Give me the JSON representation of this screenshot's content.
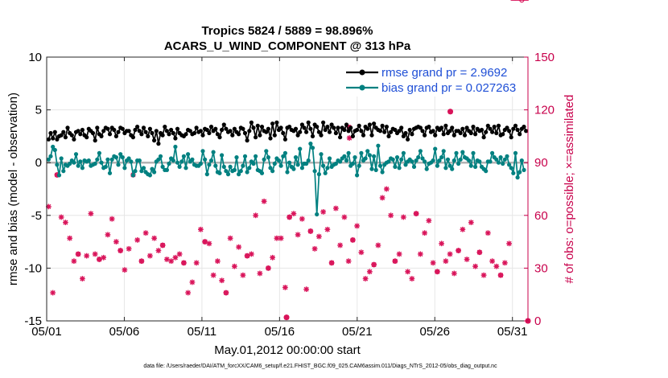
{
  "chart_data": {
    "type": "line",
    "title_line1": "Tropics 5824 / 5889 = 98.896%",
    "title_line2": "ACARS_U_WIND_COMPONENT @ 313 hPa",
    "xlabel": "May.01,2012 00:00:00 start",
    "ylabel_left": "rmse and bias (model - observation)",
    "ylabel_right": "# of obs: o=possible; ×=assimilated",
    "ylim_left": [
      -15,
      10
    ],
    "ylim_right": [
      0,
      150
    ],
    "xlim": [
      1,
      32
    ],
    "x_tick_values": [
      1,
      6,
      11,
      16,
      21,
      26,
      31
    ],
    "x_tick_labels": [
      "05/01",
      "05/06",
      "05/11",
      "05/16",
      "05/21",
      "05/26",
      "05/31"
    ],
    "y_left_ticks": [
      10,
      5,
      0,
      -5,
      -10,
      -15
    ],
    "y_right_ticks": [
      150,
      120,
      90,
      60,
      30,
      0
    ],
    "grid": true,
    "legend_position": "top-right",
    "colors": {
      "rmse": "#000000",
      "bias": "#008080",
      "obs": "#d9145a",
      "zero_line": "#b3b3b3",
      "legend_text": "#1f4fd6",
      "right_axis": "#c8004b"
    },
    "series": [
      {
        "name": "rmse grand pr = 2.9692",
        "key": "rmse",
        "values": [
          2.2,
          2.8,
          2.3,
          2.9,
          2.2,
          2.5,
          2.6,
          2.9,
          2.4,
          3.3,
          2.8,
          2.6,
          2.2,
          2.9,
          3.0,
          2.7,
          3.1,
          2.6,
          2.4,
          3.2,
          3.0,
          2.8,
          2.1,
          3.3,
          2.7,
          2.5,
          3.0,
          3.3,
          3.2,
          2.7,
          3.3,
          3.1,
          2.5,
          2.9,
          3.3,
          3.2,
          2.8,
          3.0,
          3.0,
          2.6,
          2.4,
          3.1,
          3.4,
          3.0,
          2.7,
          3.3,
          2.9,
          2.5,
          3.2,
          2.8,
          2.1,
          3.0,
          1.8,
          2.8,
          2.6,
          3.4,
          3.0,
          2.7,
          3.1,
          2.8,
          2.3,
          3.2,
          2.8,
          2.6,
          2.5,
          2.7,
          3.1,
          3.0,
          2.7,
          2.8,
          3.3,
          2.9,
          3.0,
          2.6,
          3.2,
          3.1,
          2.8,
          3.4,
          3.0,
          3.2,
          2.7,
          2.4,
          3.1,
          3.6,
          3.2,
          2.9,
          3.0,
          2.6,
          3.2,
          2.9,
          2.7,
          3.3,
          3.2,
          2.8,
          2.1,
          3.0,
          3.8,
          3.3,
          2.4,
          3.5,
          2.6,
          3.4,
          3.0,
          2.9,
          3.2,
          2.3,
          3.7,
          2.6,
          3.8,
          3.1,
          3.3,
          2.8,
          2.2,
          3.3,
          3.4,
          3.1,
          3.0,
          3.2,
          2.6,
          2.9,
          3.6,
          3.3,
          2.9,
          3.8,
          3.2,
          2.5,
          3.6,
          3.4,
          2.9,
          2.6,
          3.8,
          3.1,
          3.4,
          2.9,
          3.6,
          3.3,
          2.8,
          3.3,
          2.4,
          3.3,
          3.1,
          3.6,
          3.0,
          3.3,
          2.5,
          3.0,
          3.1,
          3.5,
          3.0,
          2.6,
          3.4,
          3.2,
          3.6,
          2.6,
          3.7,
          3.3,
          3.1,
          3.0,
          3.5,
          2.9,
          3.4,
          2.5,
          2.9,
          3.2,
          3.1,
          2.8,
          3.0,
          3.3,
          2.5,
          2.8,
          2.2,
          3.1,
          2.7,
          3.2,
          3.3,
          3.4,
          3.3,
          3.0,
          2.6,
          3.3,
          3.4,
          2.9,
          3.0,
          2.6,
          3.3,
          3.1,
          3.3,
          2.7,
          3.5,
          2.8,
          3.0,
          3.3,
          2.6,
          3.0,
          3.0,
          2.8,
          3.2,
          2.6,
          3.3,
          3.0,
          2.8,
          3.4,
          2.7,
          3.2,
          3.0,
          3.1,
          2.4,
          2.9,
          3.5,
          3.2,
          2.9,
          3.4,
          2.8,
          3.5,
          2.6,
          2.7,
          3.1,
          3.3,
          3.0,
          2.4,
          3.2,
          3.5,
          3.1,
          2.7,
          3.2,
          3.4,
          3.0
        ]
      },
      {
        "name": "bias grand pr = 0.027263",
        "key": "bias",
        "values": [
          0.3,
          0.6,
          1.5,
          1.2,
          -0.2,
          -1.2,
          0.4,
          -0.8,
          -0.2,
          -0.3,
          -0.1,
          0.2,
          0.0,
          0.8,
          -0.3,
          0.1,
          -0.5,
          0.2,
          0.1,
          0.2,
          -0.3,
          -0.2,
          -0.1,
          0.3,
          0.9,
          0.0,
          -0.5,
          -0.4,
          0.3,
          -1.0,
          0.3,
          0.6,
          0.5,
          -0.2,
          0.8,
          0.5,
          -0.5,
          0.2,
          0.4,
          0.1,
          -1.2,
          -0.8,
          0.2,
          0.2,
          -0.8,
          -0.5,
          -0.9,
          -1.1,
          -1.2,
          -0.6,
          -0.9,
          0.1,
          0.3,
          0.6,
          -0.4,
          -0.7,
          -0.7,
          -0.1,
          0.4,
          0.2,
          1.5,
          0.0,
          -0.4,
          0.1,
          0.6,
          -0.5,
          0.8,
          0.1,
          0.3,
          -0.2,
          -0.3,
          -0.3,
          -0.1,
          1.1,
          0.3,
          -1.1,
          -0.2,
          0.2,
          1.0,
          -0.3,
          -0.9,
          -1.0,
          0.7,
          -0.4,
          -0.8,
          -1.1,
          -0.4,
          -0.8,
          -0.7,
          0.5,
          -1.1,
          -0.8,
          -0.3,
          0.6,
          -0.9,
          -0.5,
          0.1,
          -0.1,
          0.6,
          -0.7,
          -0.8,
          -1.0,
          0.3,
          1.1,
          0.5,
          -0.5,
          -0.8,
          -0.1,
          0.4,
          0.2,
          -0.3,
          0.6,
          0.9,
          -0.9,
          0.0,
          -0.4,
          -0.6,
          0.5,
          -0.2,
          1.3,
          -0.5,
          -0.1,
          -0.1,
          0.2,
          1.8,
          1.4,
          -0.8,
          -4.9,
          -1.1,
          0.8,
          -0.3,
          -1.0,
          -0.5,
          0.4,
          -0.4,
          -0.2,
          -0.1,
          0.2,
          0.1,
          0.4,
          0.6,
          0.2,
          0.9,
          -0.3,
          -0.1,
          0.5,
          -1.2,
          -0.3,
          0.9,
          0.2,
          0.4,
          1.1,
          0.7,
          -0.6,
          0.6,
          -0.7,
          1.6,
          -0.3,
          -0.9,
          -0.2,
          0.0,
          0.1,
          0.4,
          0.3,
          -0.4,
          0.5,
          -0.5,
          0.3,
          0.9,
          -0.2,
          0.1,
          0.3,
          0.1,
          -0.4,
          0.2,
          0.5,
          1.1,
          0.4,
          0.1,
          -0.6,
          -0.1,
          0.0,
          0.2,
          1.3,
          -0.3,
          0.2,
          0.5,
          1.1,
          -0.5,
          0.3,
          -0.3,
          -0.6,
          0.2,
          0.9,
          -0.1,
          0.3,
          1.0,
          0.5,
          0.4,
          0.2,
          -0.3,
          0.9,
          -0.4,
          0.2,
          0.1,
          -0.4,
          -0.6,
          -0.8,
          0.1,
          0.1,
          0.9,
          0.5,
          0.3,
          0.0,
          0.5,
          -0.1,
          0.3,
          0.6,
          -0.2,
          -0.5,
          -1.0,
          0.9,
          -1.4,
          -0.9,
          0.2,
          -0.7
        ]
      },
      {
        "name": "obs possible",
        "key": "possible",
        "values": [
          65,
          40,
          16,
          45,
          83,
          78,
          59,
          50,
          56,
          63,
          47,
          37,
          34,
          29,
          38,
          60,
          24,
          48,
          37,
          52,
          61,
          31,
          38,
          55,
          35,
          18,
          36,
          29,
          49,
          40,
          58,
          41,
          45,
          29,
          40,
          72,
          29,
          56,
          41,
          44,
          83,
          100,
          46,
          31,
          34,
          74,
          50,
          52,
          37,
          38,
          47,
          27,
          40,
          39,
          43,
          49,
          35,
          22,
          34,
          51,
          36,
          64,
          38,
          47,
          33,
          32,
          16,
          54,
          22,
          37,
          33,
          45,
          52,
          37,
          45,
          73,
          44,
          20,
          26,
          46,
          34,
          28,
          23,
          30,
          16,
          53,
          47,
          36,
          31,
          50,
          42,
          39,
          26,
          51,
          37,
          24,
          38,
          29,
          60,
          45,
          27,
          35,
          68,
          33,
          30,
          97,
          36,
          42,
          47,
          60,
          47,
          52,
          19,
          54,
          59,
          44,
          61,
          23,
          49,
          32,
          58,
          53,
          18,
          31,
          51,
          17,
          41,
          54,
          48,
          55,
          62,
          44,
          52,
          36,
          33,
          39,
          64,
          36,
          43,
          50,
          59,
          41,
          34,
          40,
          46,
          73,
          54,
          45,
          39,
          35,
          24,
          52,
          28,
          40,
          32,
          23,
          43,
          46,
          70,
          63,
          75,
          42,
          60,
          23,
          34,
          45,
          38,
          40,
          59,
          22,
          28,
          31,
          24,
          45,
          61,
          40,
          38,
          32,
          50,
          35,
          57,
          27,
          33,
          58,
          28,
          18,
          44,
          51,
          34,
          25,
          38,
          47,
          27,
          60,
          40,
          35,
          52,
          23,
          35,
          42,
          56,
          32,
          31,
          17,
          39,
          63,
          26,
          43,
          50,
          65,
          34,
          28,
          31,
          24,
          26,
          37,
          33,
          52,
          44
        ]
      },
      {
        "name": "obs assimilated",
        "key": "assimilated",
        "values": [
          65,
          40,
          16,
          45,
          83,
          78,
          59,
          50,
          56,
          63,
          47,
          37,
          34,
          29,
          38,
          60,
          24,
          48,
          37,
          52,
          61,
          31,
          38,
          55,
          35,
          18,
          36,
          29,
          49,
          40,
          58,
          41,
          45,
          29,
          40,
          72,
          29,
          56,
          41,
          44,
          83,
          97,
          46,
          31,
          34,
          74,
          50,
          52,
          37,
          38,
          47,
          27,
          40,
          39,
          43,
          49,
          35,
          22,
          34,
          51,
          36,
          64,
          38,
          47,
          33,
          32,
          16,
          54,
          22,
          37,
          33,
          45,
          52,
          37,
          45,
          73,
          44,
          20,
          26,
          46,
          34,
          28,
          23,
          30,
          16,
          53,
          47,
          36,
          31,
          50,
          42,
          39,
          26,
          51,
          37,
          24,
          38,
          29,
          60,
          45,
          27,
          35,
          68,
          33,
          30,
          97,
          36,
          42,
          47,
          60,
          47,
          52,
          19,
          54,
          59,
          44,
          61,
          23,
          49,
          32,
          58,
          53,
          18,
          31,
          51,
          17,
          41,
          54,
          48,
          55,
          62,
          44,
          52,
          36,
          33,
          39,
          64,
          36,
          43,
          50,
          59,
          41,
          34,
          40,
          46,
          73,
          54,
          45,
          39,
          35,
          24,
          52,
          28,
          40,
          32,
          23,
          43,
          46,
          70,
          63,
          75,
          42,
          60,
          23,
          34,
          45,
          38,
          40,
          59,
          22,
          28,
          31,
          24,
          45,
          61,
          40,
          38,
          32,
          50,
          35,
          57,
          27,
          33,
          58,
          28,
          18,
          44,
          51,
          34,
          25,
          38,
          47,
          27,
          60,
          40,
          35,
          52,
          23,
          35,
          42,
          56,
          32,
          31,
          17,
          39,
          63,
          26,
          43,
          50,
          65,
          34,
          28,
          31,
          24,
          26,
          37,
          33,
          52,
          44
        ]
      }
    ],
    "obs_marked_points": [
      {
        "day": 27.0,
        "possible": 119,
        "assimilated": 119
      },
      {
        "day": 16.45,
        "possible": 2,
        "assimilated": 2
      },
      {
        "day": 32.0,
        "possible": 0,
        "assimilated": 0
      },
      {
        "day": 20.5,
        "possible": 110,
        "assimilated": 104
      }
    ]
  },
  "footnote": "data file: /Users/raeder/DAI/ATM_forcXX/CAM6_setup/f.e21.FHIST_BGC.f09_025.CAM6assim.011/Diags_NTrS_2012-05/obs_diag_output.nc"
}
